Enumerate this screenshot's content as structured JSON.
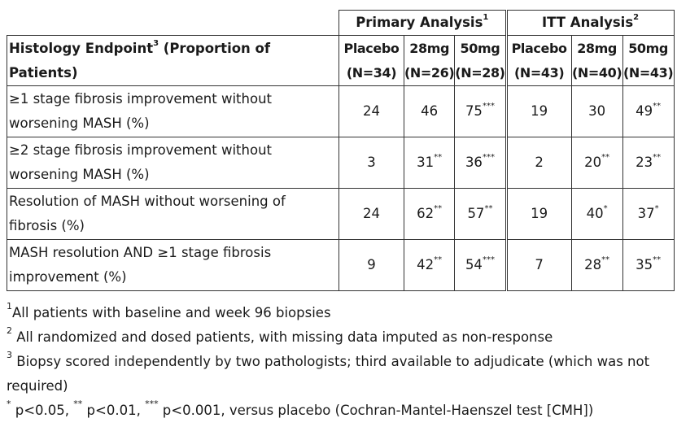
{
  "table": {
    "group_headers": [
      {
        "label": "Primary Analysis",
        "sup": "1"
      },
      {
        "label": "ITT Analysis",
        "sup": "2"
      }
    ],
    "endpoint_header": {
      "label": "Histology Endpoint",
      "sup": "3",
      "suffix": " (Proportion of Patients)"
    },
    "columns": [
      {
        "dose": "Placebo",
        "n": "(N=34)"
      },
      {
        "dose": "28mg",
        "n": "(N=26)"
      },
      {
        "dose": "50mg",
        "n": "(N=28)"
      },
      {
        "dose": "Placebo",
        "n": "(N=43)"
      },
      {
        "dose": "28mg",
        "n": "(N=40)"
      },
      {
        "dose": "50mg",
        "n": "(N=43)"
      }
    ],
    "rows": [
      {
        "label": "≥1 stage fibrosis improvement without worsening MASH (%)",
        "cells": [
          {
            "v": "24",
            "s": ""
          },
          {
            "v": "46",
            "s": ""
          },
          {
            "v": "75",
            "s": "***"
          },
          {
            "v": "19",
            "s": ""
          },
          {
            "v": "30",
            "s": ""
          },
          {
            "v": "49",
            "s": "**"
          }
        ]
      },
      {
        "label": "≥2 stage fibrosis improvement without worsening MASH (%)",
        "cells": [
          {
            "v": "3",
            "s": ""
          },
          {
            "v": "31",
            "s": "**"
          },
          {
            "v": "36",
            "s": "***"
          },
          {
            "v": "2",
            "s": ""
          },
          {
            "v": "20",
            "s": "**"
          },
          {
            "v": "23",
            "s": "**"
          }
        ]
      },
      {
        "label": "Resolution of MASH without worsening of fibrosis (%)",
        "cells": [
          {
            "v": "24",
            "s": ""
          },
          {
            "v": "62",
            "s": "**"
          },
          {
            "v": "57",
            "s": "**"
          },
          {
            "v": "19",
            "s": ""
          },
          {
            "v": "40",
            "s": "*"
          },
          {
            "v": "37",
            "s": "*"
          }
        ]
      },
      {
        "label": "MASH resolution AND ≥1 stage fibrosis improvement (%)",
        "cells": [
          {
            "v": "9",
            "s": ""
          },
          {
            "v": "42",
            "s": "**"
          },
          {
            "v": "54",
            "s": "***"
          },
          {
            "v": "7",
            "s": ""
          },
          {
            "v": "28",
            "s": "**"
          },
          {
            "v": "35",
            "s": "**"
          }
        ]
      }
    ]
  },
  "footnotes": [
    {
      "mark": "1",
      "text": "All patients with baseline and week 96 biopsies"
    },
    {
      "mark": "2",
      "text": " All randomized and dosed patients, with missing data imputed as non-response"
    },
    {
      "mark": "3",
      "text": " Biopsy scored independently by two pathologists; third available to adjudicate (which was not required)"
    },
    {
      "parts": [
        {
          "mark": "*",
          "text": " p<0.05, "
        },
        {
          "mark": "**",
          "text": " p<0.01, "
        },
        {
          "mark": "***",
          "text": " p<0.001, versus placebo (Cochran-Mantel-Haenszel test [CMH])"
        }
      ]
    }
  ]
}
